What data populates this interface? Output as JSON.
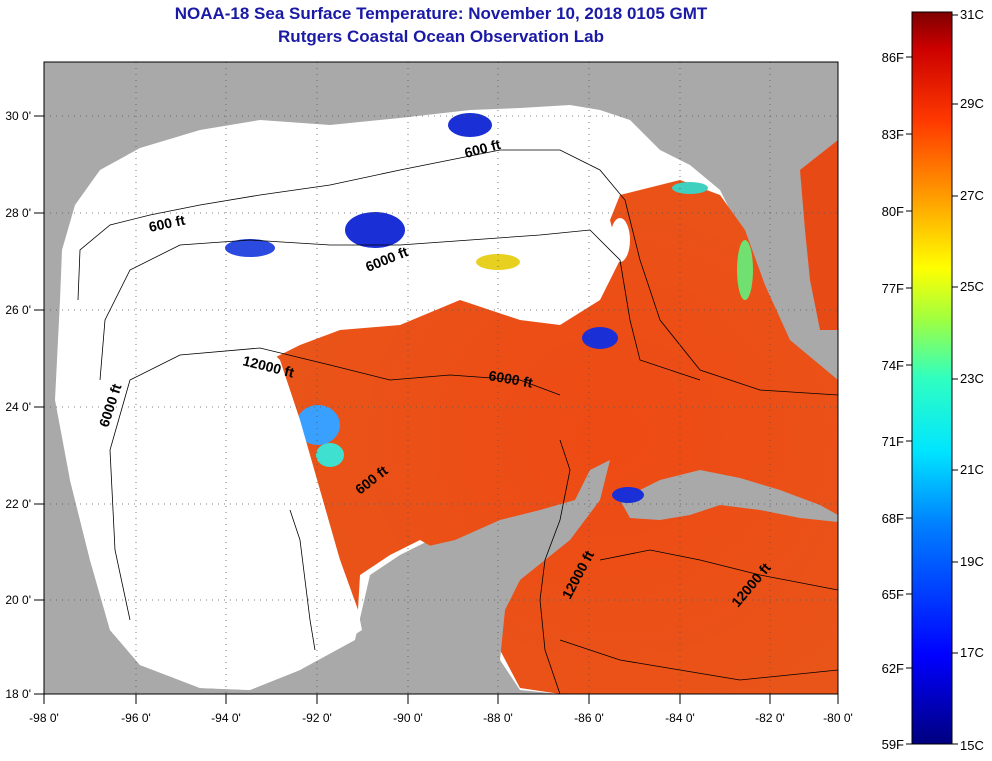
{
  "title_line1": "NOAA-18 Sea Surface Temperature:  November 10, 2018 0105 GMT",
  "title_line2": "Rutgers Coastal Ocean Observation Lab",
  "x_ticks": [
    "-98 0'",
    "-96 0'",
    "-94 0'",
    "-92 0'",
    "-90 0'",
    "-88 0'",
    "-86 0'",
    "-84 0'",
    "-82 0'",
    "-80 0'"
  ],
  "y_ticks": [
    "30 0'",
    "28 0'",
    "26 0'",
    "24 0'",
    "22 0'",
    "20 0'",
    "18 0'"
  ],
  "colorbar": {
    "fahrenheit": [
      "86F",
      "83F",
      "80F",
      "77F",
      "74F",
      "71F",
      "68F",
      "65F",
      "62F",
      "59F"
    ],
    "celsius": [
      "31C",
      "29C",
      "27C",
      "25C",
      "23C",
      "21C",
      "19C",
      "17C",
      "15C"
    ]
  },
  "contour_labels": [
    "600 ft",
    "600 ft",
    "6000 ft",
    "6000 ft",
    "12000 ft",
    "6000 ft",
    "600 ft",
    "12000 ft",
    "12000 ft"
  ],
  "colors": {
    "land": "#a9a9a9",
    "no_data": "#ffffff",
    "title": "#1a1aa6",
    "warm_water": "#ee3a14"
  }
}
